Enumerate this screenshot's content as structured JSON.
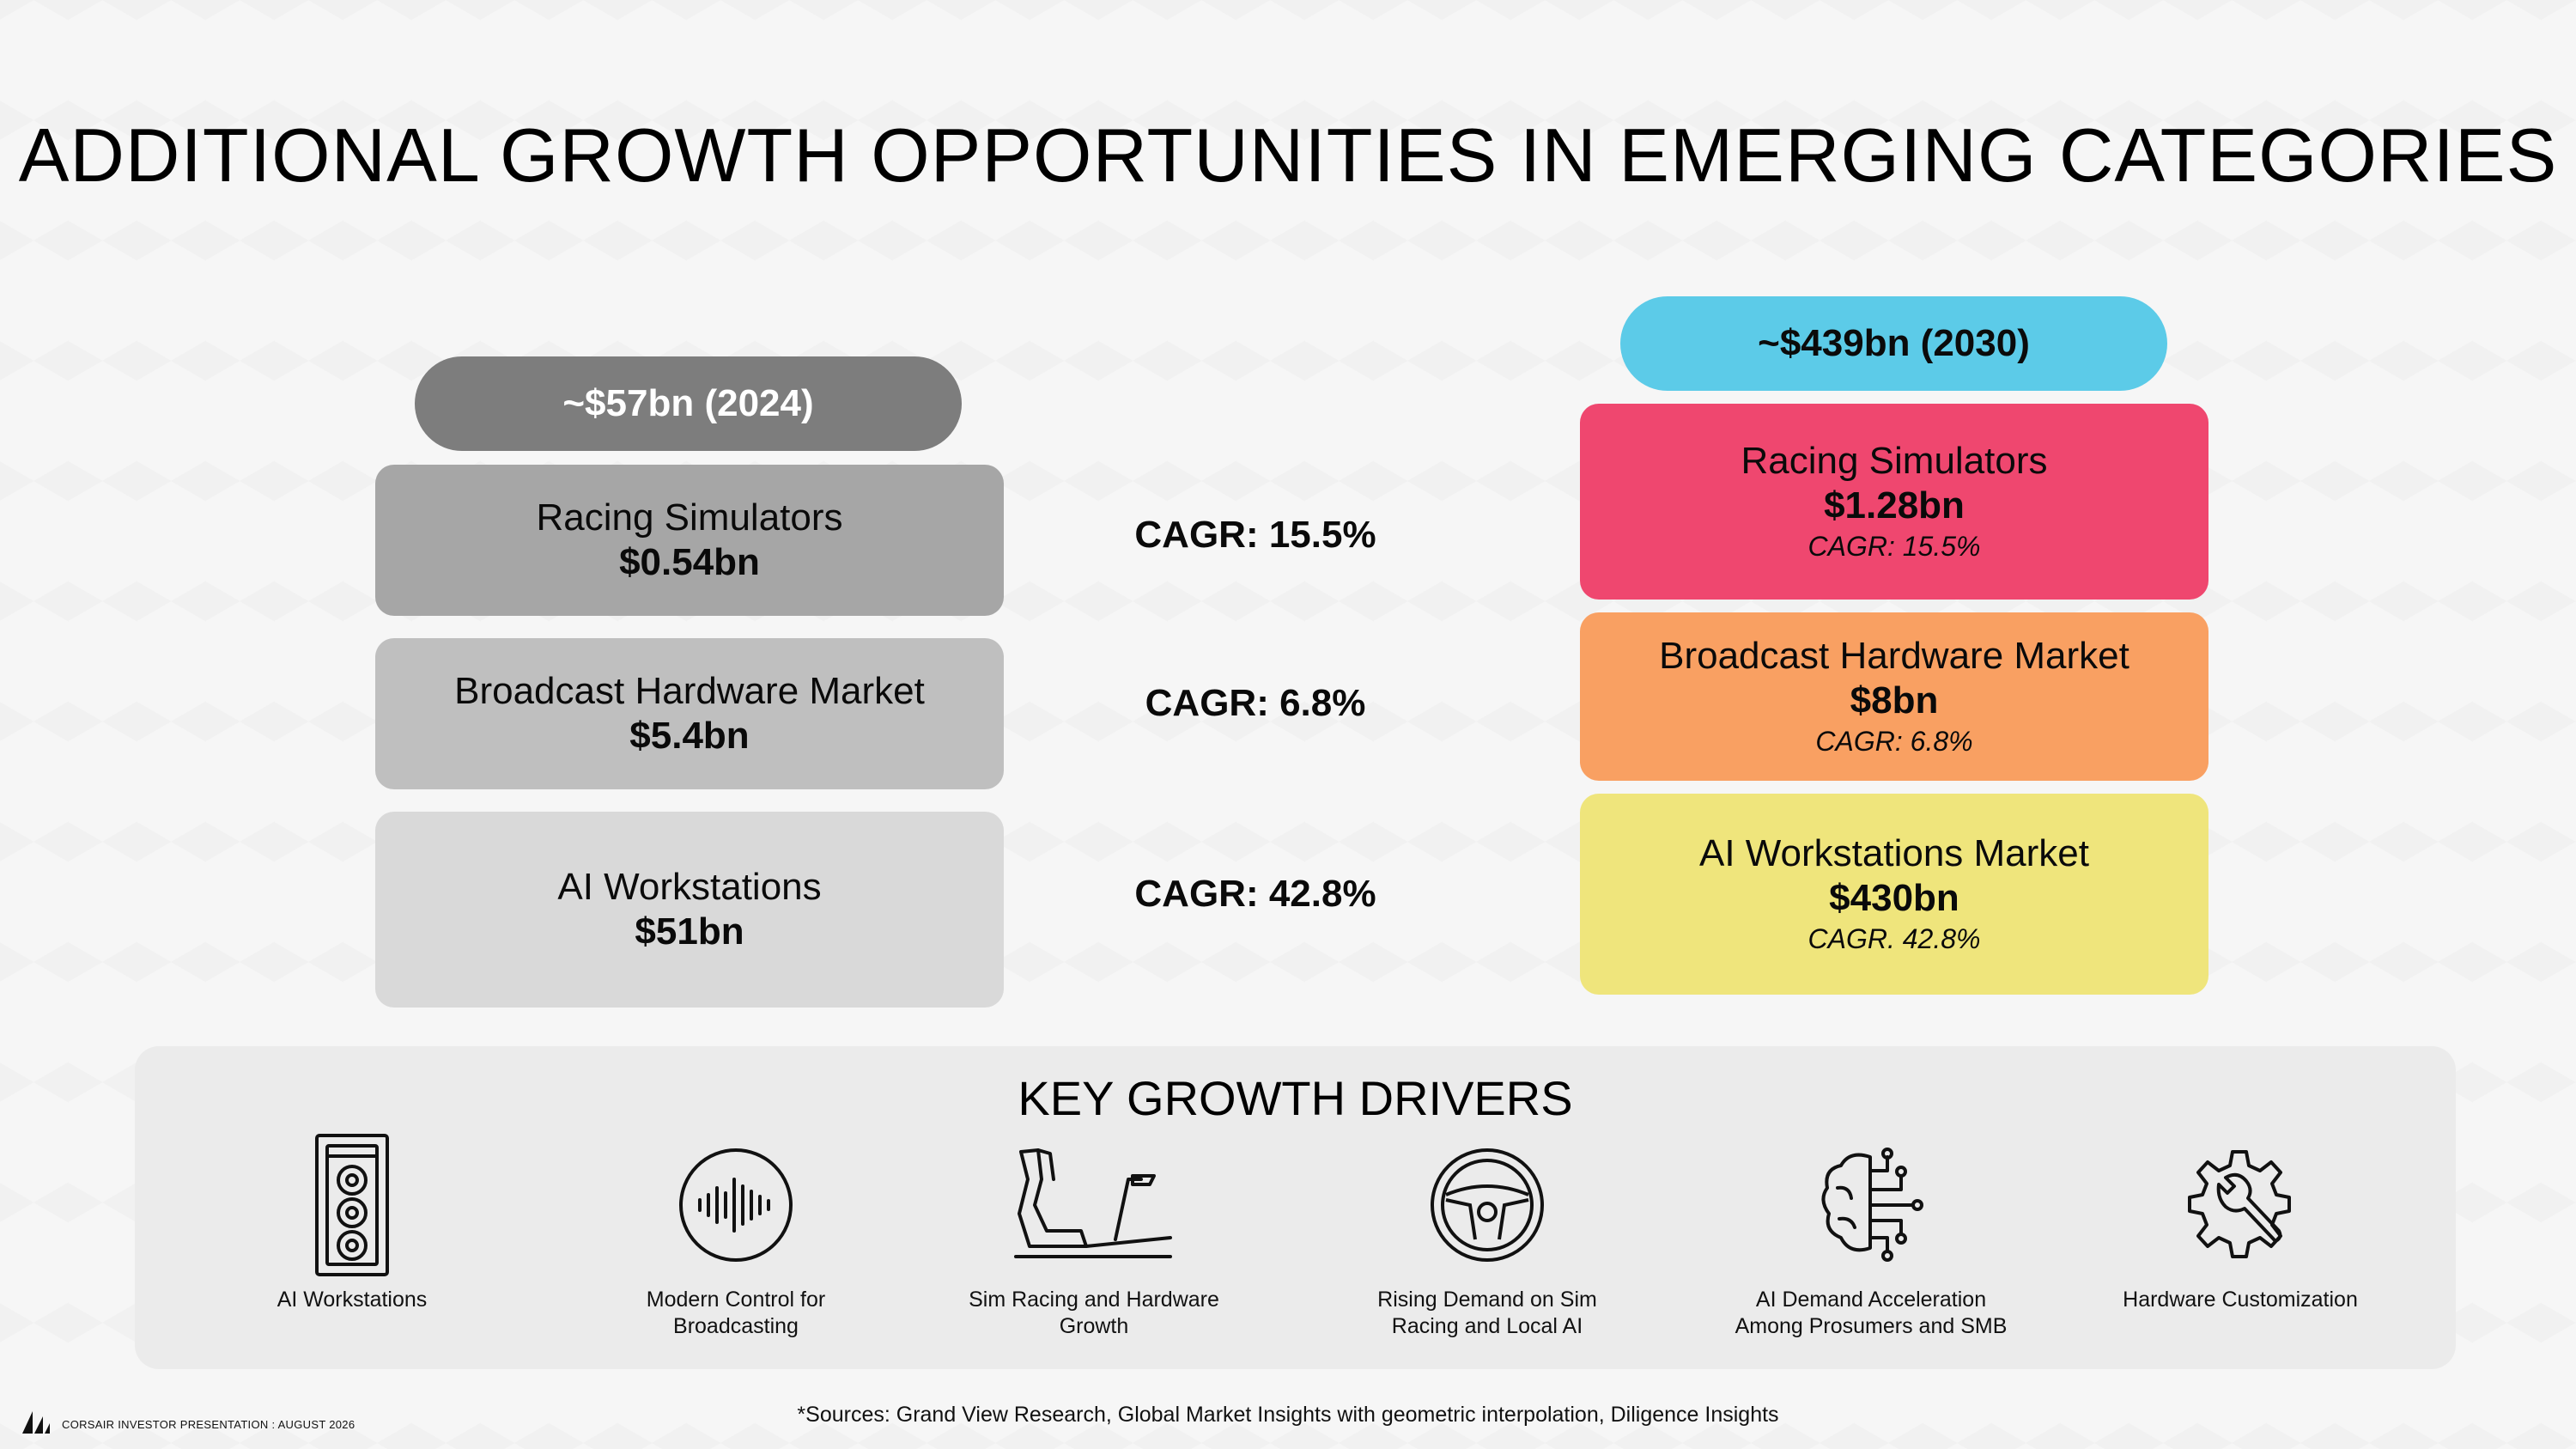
{
  "title": "ADDITIONAL GROWTH OPPORTUNITIES IN EMERGING CATEGORIES",
  "left": {
    "header": "~$57bn (2024)",
    "boxes": [
      {
        "name": "Racing Simulators",
        "value": "$0.54bn"
      },
      {
        "name": "Broadcast Hardware Market",
        "value": "$5.4bn"
      },
      {
        "name": "AI Workstations",
        "value": "$51bn"
      }
    ]
  },
  "middle": {
    "cagrs": [
      "CAGR: 15.5%",
      "CAGR: 6.8%",
      "CAGR: 42.8%"
    ]
  },
  "right": {
    "header": "~$439bn (2030)",
    "boxes": [
      {
        "name": "Racing Simulators",
        "value": "$1.28bn",
        "cagr": "CAGR: 15.5%",
        "color": "#ef476f"
      },
      {
        "name": "Broadcast Hardware Market",
        "value": "$8bn",
        "cagr": "CAGR: 6.8%",
        "color": "#f9a062"
      },
      {
        "name": "AI Workstations Market",
        "value": "$430bn",
        "cagr": "CAGR. 42.8%",
        "color": "#efe57c"
      }
    ]
  },
  "colors": {
    "header_2024": "#7d7d7d",
    "header_2030": "#5ccbe8"
  },
  "drivers": {
    "title": "KEY GROWTH DRIVERS",
    "items": [
      {
        "icon": "pc-tower-icon",
        "label": "AI Workstations"
      },
      {
        "icon": "sound-wave-icon",
        "label": "Modern Control for Broadcasting"
      },
      {
        "icon": "racing-seat-icon",
        "label": "Sim Racing and Hardware Growth"
      },
      {
        "icon": "steering-wheel-icon",
        "label": "Rising Demand on Sim Racing and Local AI"
      },
      {
        "icon": "ai-brain-icon",
        "label": "AI Demand Acceleration Among Prosumers and SMB"
      },
      {
        "icon": "gear-wrench-icon",
        "label": "Hardware Customization"
      }
    ]
  },
  "footer": {
    "brand": "CORSAIR INVESTOR PRESENTATION : AUGUST 2026",
    "sources": "*Sources: Grand View Research, Global Market Insights with geometric interpolation, Diligence Insights"
  }
}
